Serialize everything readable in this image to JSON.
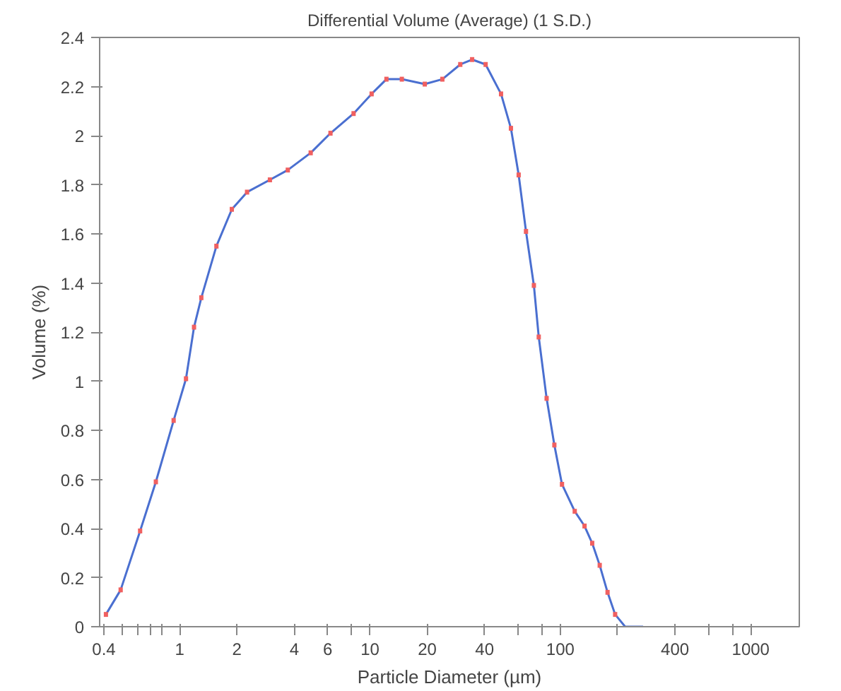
{
  "chart_data": {
    "type": "line",
    "title": "Differential Volume (Average) (1 S.D.)",
    "xlabel": "Particle Diameter (µm)",
    "ylabel": "Volume (%)",
    "log": "x",
    "xlim": [
      0.38,
      1800
    ],
    "ylim": [
      0,
      2.4
    ],
    "xticks": [
      0.4,
      {
        "value": 0.5,
        "label": null
      },
      {
        "value": 0.6,
        "label": null
      },
      {
        "value": 0.7,
        "label": null
      },
      {
        "value": 0.8,
        "label": null
      },
      1,
      2,
      4,
      6,
      {
        "value": 8,
        "label": null
      },
      10,
      20,
      40,
      {
        "value": 60,
        "label": null
      },
      {
        "value": 80,
        "label": null
      },
      100,
      {
        "value": 200,
        "label": null
      },
      400,
      {
        "value": 600,
        "label": null
      },
      {
        "value": 800,
        "label": null
      },
      1000
    ],
    "yticks": [
      0,
      0.2,
      0.4,
      0.6,
      0.8,
      1,
      1.2,
      1.4,
      1.6,
      1.8,
      2,
      2.2,
      2.4
    ],
    "grid": false,
    "marker": "none",
    "line_style": "solid",
    "series": [
      {
        "color": "#4a6fd0",
        "x": [
          0.41,
          0.49,
          0.62,
          0.75,
          0.93,
          1.08,
          1.19,
          1.3,
          1.56,
          1.88,
          2.26,
          2.98,
          3.7,
          4.88,
          6.2,
          8.2,
          10.2,
          12.2,
          14.7,
          19.4,
          24,
          29.8,
          34.4,
          40.5,
          48.8,
          55,
          60.4,
          66,
          72.6,
          77,
          84.7,
          93,
          102,
          119,
          134,
          147,
          161,
          177,
          194,
          219,
          272
        ],
        "values": [
          0.05,
          0.15,
          0.39,
          0.59,
          0.84,
          1.01,
          1.22,
          1.34,
          1.55,
          1.7,
          1.77,
          1.82,
          1.86,
          1.93,
          2.01,
          2.09,
          2.17,
          2.23,
          2.23,
          2.21,
          2.23,
          2.29,
          2.31,
          2.29,
          2.17,
          2.03,
          1.84,
          1.61,
          1.39,
          1.18,
          0.93,
          0.74,
          0.58,
          0.47,
          0.41,
          0.34,
          0.25,
          0.14,
          0.05,
          0,
          0
        ],
        "errors": [
          0.01,
          0.01,
          0.01,
          0.01,
          0.01,
          0.01,
          0.01,
          0.01,
          0.01,
          0.01,
          0.01,
          0.01,
          0.01,
          0.01,
          0.01,
          0.01,
          0.01,
          0.01,
          0.01,
          0.01,
          0.01,
          0.01,
          0.01,
          0.01,
          0.01,
          0.01,
          0.01,
          0.01,
          0.01,
          0.01,
          0.01,
          0.01,
          0.01,
          0.01,
          0.01,
          0.01,
          0.01,
          0.01,
          0.01,
          null,
          null
        ]
      }
    ]
  }
}
